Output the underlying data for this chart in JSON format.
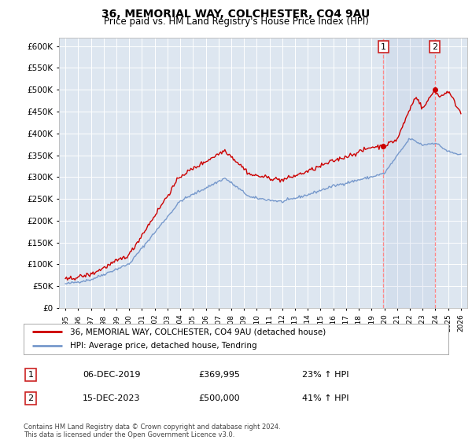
{
  "title": "36, MEMORIAL WAY, COLCHESTER, CO4 9AU",
  "subtitle": "Price paid vs. HM Land Registry's House Price Index (HPI)",
  "legend_line1": "36, MEMORIAL WAY, COLCHESTER, CO4 9AU (detached house)",
  "legend_line2": "HPI: Average price, detached house, Tendring",
  "annotation1_label": "1",
  "annotation1_date": "06-DEC-2019",
  "annotation1_price": "£369,995",
  "annotation1_hpi": "23% ↑ HPI",
  "annotation2_label": "2",
  "annotation2_date": "15-DEC-2023",
  "annotation2_price": "£500,000",
  "annotation2_hpi": "41% ↑ HPI",
  "footnote": "Contains HM Land Registry data © Crown copyright and database right 2024.\nThis data is licensed under the Open Government Licence v3.0.",
  "hpi_color": "#7799cc",
  "price_color": "#cc0000",
  "dashed_color": "#ff8888",
  "ylim_min": 0,
  "ylim_max": 620000,
  "yticks": [
    0,
    50000,
    100000,
    150000,
    200000,
    250000,
    300000,
    350000,
    400000,
    450000,
    500000,
    550000,
    600000
  ],
  "xlim_min": 1994.5,
  "xlim_max": 2026.5,
  "sale1_x": 2019.92,
  "sale1_y": 369995,
  "sale2_x": 2023.96,
  "sale2_y": 500000,
  "background_color": "#dde6f0",
  "fig_bg_color": "#ffffff"
}
